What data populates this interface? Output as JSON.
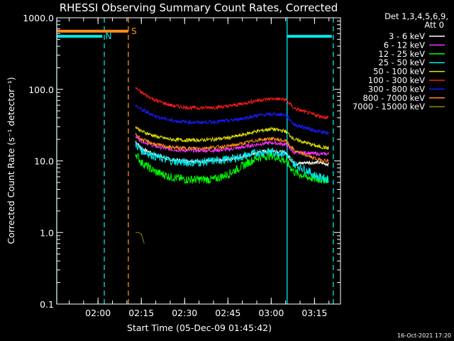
{
  "chart_data": {
    "type": "line",
    "title": "RHESSI Observing Summary Count Rates, Corrected",
    "xlabel": "Start Time (05-Dec-09 01:45:42)",
    "ylabel": "Corrected Count Rate (s⁻¹ detector⁻¹)",
    "y_scale": "log",
    "ylim": [
      0.1,
      1000
    ],
    "xlim": [
      "01:45:42",
      "03:24:00"
    ],
    "y_ticks": [
      "0.1",
      "1.0",
      "10.0",
      "100.0",
      "1000.0"
    ],
    "x_ticks": [
      "02:00",
      "02:15",
      "02:30",
      "02:45",
      "03:00",
      "03:15"
    ],
    "legend_header": [
      "Det 1,3,4,5,6,9,",
      "Att 0"
    ],
    "legend_position": "right",
    "timestamp": "16-Oct-2021 17:20",
    "flags": {
      "n_label": "N",
      "s_label": "S",
      "night_bars": [
        {
          "start": "01:45:42",
          "end": "02:01:30",
          "value": 550
        },
        {
          "start": "03:05:30",
          "end": "03:21:00",
          "value": 550
        }
      ],
      "saa_bar": {
        "start": "01:45:42",
        "end": "02:10:30",
        "value": 650
      }
    },
    "vertical_lines": [
      {
        "time": "01:45:42",
        "style": "solid",
        "color": "#00e8e8"
      },
      {
        "time": "02:02:10",
        "style": "dashed",
        "color": "#00e8e8"
      },
      {
        "time": "02:10:30",
        "style": "dashed",
        "color": "#ff8c1a"
      },
      {
        "time": "03:05:30",
        "style": "solid",
        "color": "#00e8e8"
      },
      {
        "time": "03:21:30",
        "style": "dashed",
        "color": "#00e8e8"
      }
    ],
    "series": [
      {
        "name": "3 - 6 keV",
        "color": "#ffffff",
        "x": [
          "02:13",
          "02:15",
          "02:20",
          "02:25",
          "02:30",
          "02:35",
          "02:40",
          "02:45",
          "02:50",
          "02:55",
          "03:00",
          "03:05",
          "03:08",
          "03:12",
          "03:16",
          "03:20"
        ],
        "values": [
          19,
          15,
          12,
          10.5,
          10,
          10,
          10,
          10.5,
          11.5,
          13,
          14,
          13,
          9,
          9.5,
          9.5,
          9
        ]
      },
      {
        "name": "6 - 12 keV",
        "color": "#ff33ff",
        "x": [
          "02:13",
          "02:15",
          "02:20",
          "02:25",
          "02:30",
          "02:35",
          "02:40",
          "02:45",
          "02:50",
          "02:55",
          "03:00",
          "03:05",
          "03:08",
          "03:12",
          "03:16",
          "03:20"
        ],
        "values": [
          22,
          19,
          16,
          14.5,
          14,
          14,
          14,
          14.5,
          15.5,
          17,
          18,
          17,
          13,
          13,
          12.5,
          12.5
        ]
      },
      {
        "name": "12 - 25 keV",
        "color": "#00ff00",
        "x": [
          "02:13",
          "02:15",
          "02:20",
          "02:25",
          "02:30",
          "02:35",
          "02:40",
          "02:45",
          "02:50",
          "02:55",
          "03:00",
          "03:05",
          "03:08",
          "03:12",
          "03:16",
          "03:20"
        ],
        "values": [
          13,
          9.5,
          7,
          6,
          5.5,
          5.5,
          5.5,
          6.5,
          8.5,
          11,
          12,
          10,
          7,
          6,
          5.5,
          5.5
        ]
      },
      {
        "name": "25 - 50 keV",
        "color": "#00e8e8",
        "x": [
          "02:13",
          "02:15",
          "02:20",
          "02:25",
          "02:30",
          "02:35",
          "02:40",
          "02:45",
          "02:50",
          "02:55",
          "03:00",
          "03:05",
          "03:08",
          "03:12",
          "03:16",
          "03:20"
        ],
        "values": [
          17,
          14,
          11.5,
          10,
          9.5,
          9.5,
          10,
          10.5,
          11.5,
          13,
          13.5,
          12.5,
          9,
          7.5,
          6,
          5.5
        ]
      },
      {
        "name": "50 - 100 keV",
        "color": "#e6e600",
        "x": [
          "02:13",
          "02:15",
          "02:20",
          "02:25",
          "02:30",
          "02:35",
          "02:40",
          "02:45",
          "02:50",
          "02:55",
          "03:00",
          "03:05",
          "03:08",
          "03:12",
          "03:16",
          "03:20"
        ],
        "values": [
          30,
          26,
          22,
          20,
          19.5,
          19.5,
          20,
          21,
          23,
          26,
          28,
          26,
          20,
          18,
          16,
          15
        ]
      },
      {
        "name": "100 - 300 keV",
        "color": "#ff1a1a",
        "x": [
          "02:13",
          "02:15",
          "02:20",
          "02:25",
          "02:30",
          "02:35",
          "02:40",
          "02:45",
          "02:50",
          "02:55",
          "03:00",
          "03:05",
          "03:08",
          "03:12",
          "03:16",
          "03:20"
        ],
        "values": [
          105,
          90,
          70,
          60,
          56,
          55,
          56,
          58,
          63,
          70,
          74,
          72,
          54,
          48,
          43,
          40
        ]
      },
      {
        "name": "300 - 800 keV",
        "color": "#1a1aff",
        "x": [
          "02:13",
          "02:15",
          "02:20",
          "02:25",
          "02:30",
          "02:35",
          "02:40",
          "02:45",
          "02:50",
          "02:55",
          "03:00",
          "03:05",
          "03:08",
          "03:12",
          "03:16",
          "03:20"
        ],
        "values": [
          60,
          52,
          42,
          37,
          35,
          34.5,
          35,
          36.5,
          39,
          43,
          45,
          44,
          32,
          29,
          26,
          24
        ]
      },
      {
        "name": "800 - 7000 keV",
        "color": "#ff8c1a",
        "x": [
          "02:13",
          "02:15",
          "02:20",
          "02:25",
          "02:30",
          "02:35",
          "02:40",
          "02:45",
          "02:50",
          "02:55",
          "03:00",
          "03:05",
          "03:08",
          "03:12",
          "03:16",
          "03:20"
        ],
        "values": [
          24,
          20,
          17,
          15.5,
          15,
          15,
          15.5,
          16,
          17.5,
          19.5,
          20.5,
          19,
          14,
          12,
          10.5,
          10
        ]
      },
      {
        "name": "7000 - 15000 keV",
        "color": "#8a8a00",
        "x": [
          "02:13",
          "02:14",
          "02:15",
          "02:16"
        ],
        "values": [
          1.0,
          1.0,
          0.95,
          0.7
        ]
      }
    ]
  }
}
